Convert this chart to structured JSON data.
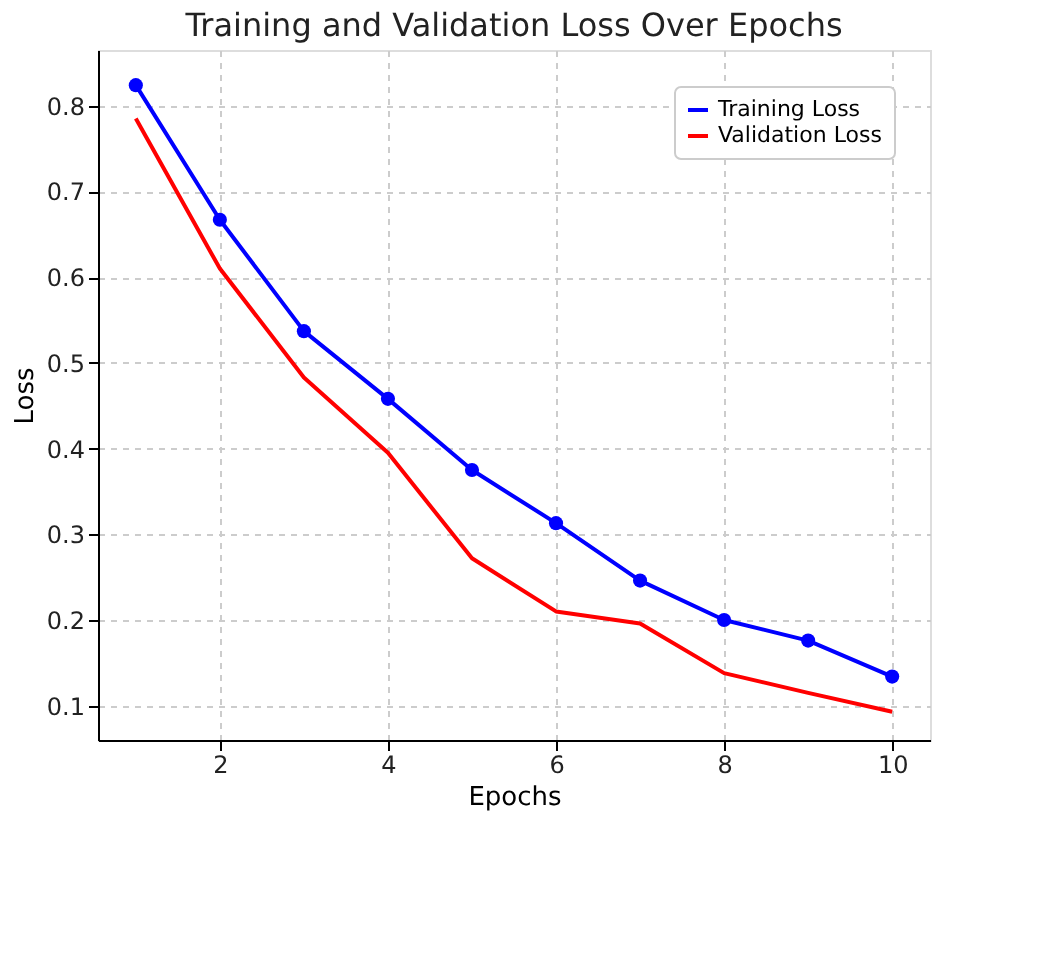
{
  "chart_data": {
    "type": "line",
    "title": "Training and Validation Loss Over Epochs",
    "xlabel": "Epochs",
    "ylabel": "Loss",
    "x": [
      1,
      2,
      3,
      4,
      5,
      6,
      7,
      8,
      9,
      10
    ],
    "series": [
      {
        "name": "Training Loss",
        "color": "#0000ff",
        "marker": "circle",
        "values": [
          0.824,
          0.667,
          0.537,
          0.458,
          0.375,
          0.313,
          0.246,
          0.2,
          0.176,
          0.134
        ]
      },
      {
        "name": "Validation Loss",
        "color": "#ff0000",
        "marker": "none",
        "values": [
          0.785,
          0.61,
          0.483,
          0.395,
          0.272,
          0.21,
          0.196,
          0.138,
          0.115,
          0.093
        ]
      }
    ],
    "xlim": [
      0.55,
      10.45
    ],
    "ylim": [
      0.06,
      0.865
    ],
    "xticks": [
      2,
      4,
      6,
      8,
      10
    ],
    "yticks": [
      0.1,
      0.2,
      0.3,
      0.4,
      0.5,
      0.6,
      0.7,
      0.8
    ],
    "grid": true,
    "legend": "top right",
    "line_style": "solid"
  }
}
